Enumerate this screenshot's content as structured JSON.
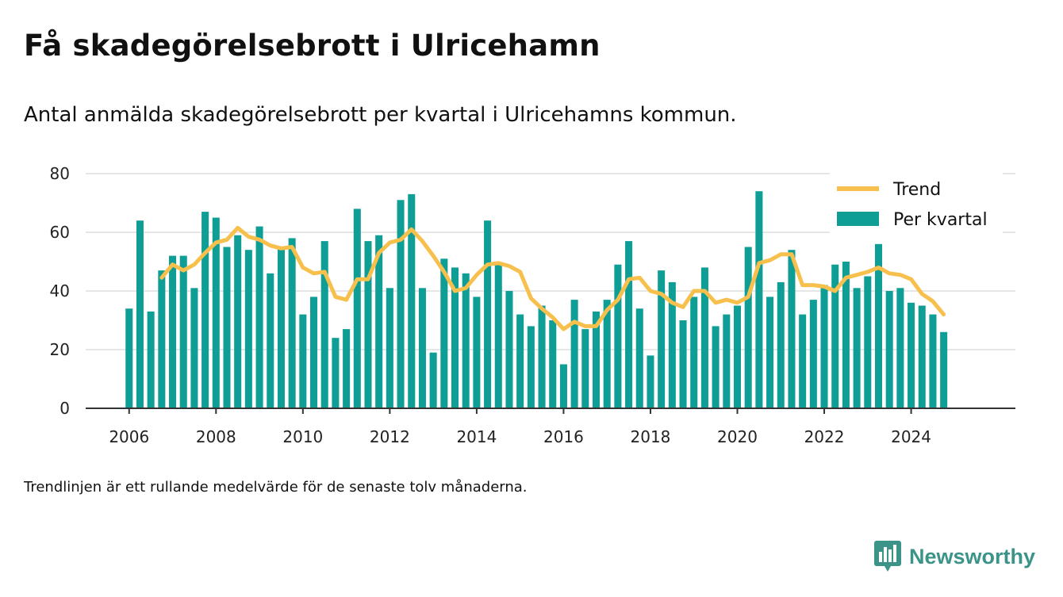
{
  "header": {
    "title": "Få skadegörelsebrott i Ulricehamn",
    "subtitle": "Antal anmälda skadegörelsebrott per kvartal i Ulricehamns kommun."
  },
  "footnote": "Trendlinjen är ett rullande medelvärde för de senaste tolv månaderna.",
  "brand": {
    "name": "Newsworthy",
    "icon": "bar-chart-speech-bubble-icon",
    "color": "#3c9489"
  },
  "chart_data": {
    "type": "bar",
    "x_start": 2006,
    "quarters_per_year": 4,
    "xlim": [
      2005.0,
      2026.4
    ],
    "ylim": [
      0,
      80
    ],
    "yticks": [
      0,
      20,
      40,
      60,
      80
    ],
    "xticks": [
      2006,
      2008,
      2010,
      2012,
      2014,
      2016,
      2018,
      2020,
      2022,
      2024
    ],
    "grid": true,
    "legend_position": "top-right",
    "colors": {
      "bar": "#0f9e95",
      "trend": "#f7c04d",
      "grid": "#dddddd",
      "axis": "#333333"
    },
    "series": [
      {
        "name": "Per kvartal",
        "kind": "bar",
        "values": [
          34,
          64,
          33,
          47,
          52,
          52,
          41,
          67,
          65,
          55,
          59,
          54,
          62,
          46,
          55,
          58,
          32,
          38,
          57,
          24,
          27,
          68,
          57,
          59,
          41,
          71,
          73,
          41,
          19,
          51,
          48,
          46,
          38,
          64,
          49,
          40,
          32,
          28,
          35,
          30,
          15,
          37,
          27,
          33,
          37,
          49,
          57,
          34,
          18,
          47,
          43,
          30,
          38,
          48,
          28,
          32,
          35,
          55,
          74,
          38,
          43,
          54,
          32,
          37,
          42,
          49,
          50,
          41,
          45,
          56,
          40,
          41,
          36,
          35,
          32,
          26
        ]
      },
      {
        "name": "Trend",
        "kind": "line",
        "start_index": 3,
        "values": [
          44.5,
          49,
          47,
          49,
          53,
          56.5,
          57.5,
          61.5,
          58.5,
          57.5,
          55.5,
          54.5,
          55,
          48,
          46,
          46.5,
          38,
          37,
          44,
          44,
          53,
          56.5,
          57.5,
          61,
          57,
          52,
          46.5,
          40,
          41,
          45.5,
          49,
          49.5,
          48.5,
          46.5,
          37.5,
          34,
          31,
          27,
          29.5,
          28,
          28,
          33.5,
          37,
          44,
          44.5,
          40,
          39,
          36,
          34.5,
          40,
          40,
          36,
          37,
          36,
          38,
          49.5,
          50.5,
          52.5,
          52.5,
          42,
          42,
          41.5,
          40,
          44.5,
          45.5,
          46.5,
          48,
          46,
          45.5,
          44,
          39,
          36.5,
          32
        ]
      }
    ]
  }
}
